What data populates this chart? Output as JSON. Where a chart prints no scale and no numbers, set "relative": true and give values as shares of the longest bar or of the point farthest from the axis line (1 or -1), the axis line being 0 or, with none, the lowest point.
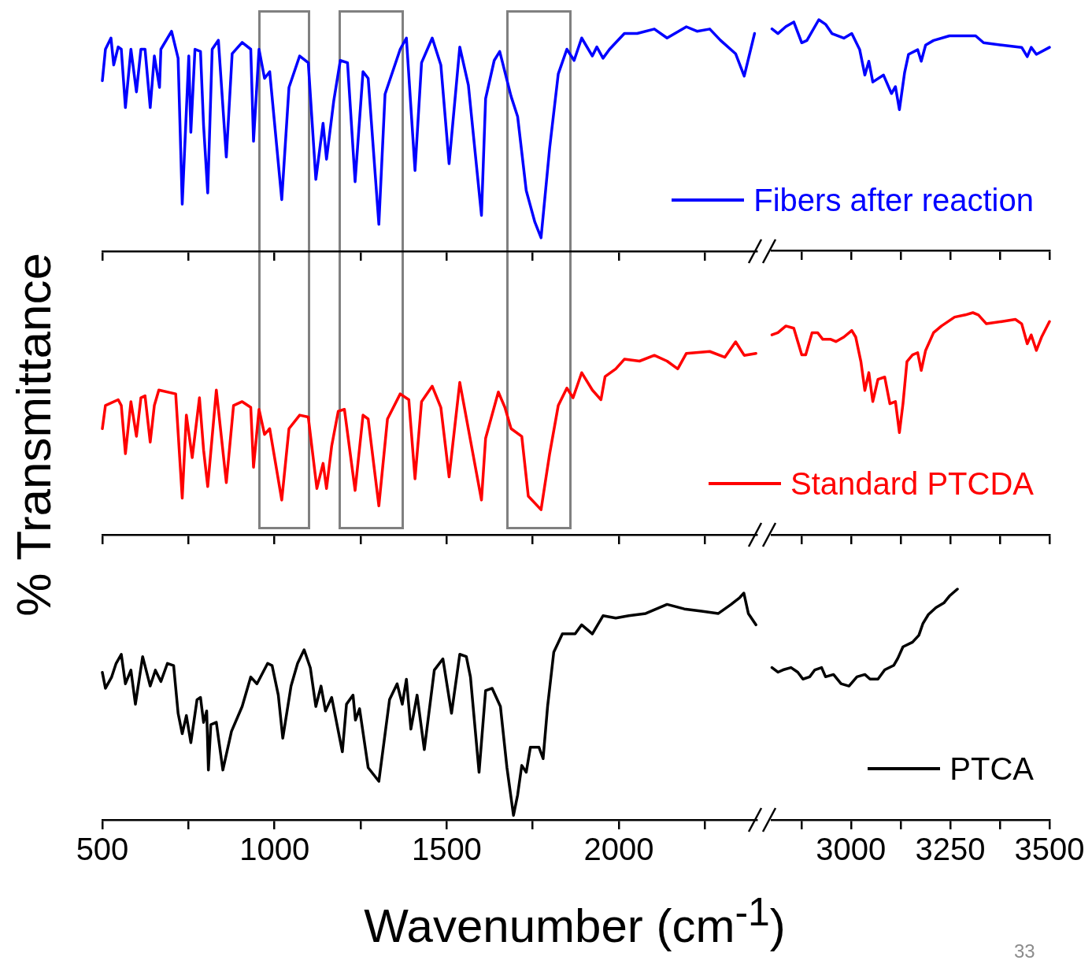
{
  "chart_data": [
    {
      "type": "line",
      "relative": true,
      "ylabel": "% Transmittance",
      "tick_labels": false,
      "legend": "bottom right",
      "xlim": [
        500,
        2400
      ],
      "xticks": [
        500,
        {
          "value": 750,
          "label": null
        },
        1000,
        {
          "value": 1250,
          "label": null
        },
        1500,
        {
          "value": 1750,
          "label": null
        },
        2000,
        {
          "value": 2250,
          "label": null
        }
      ],
      "x": [
        500,
        509,
        525,
        533,
        546,
        555,
        567,
        583,
        599,
        612,
        624,
        639,
        651,
        666,
        670,
        701,
        720,
        732,
        751,
        757,
        769,
        785,
        794,
        806,
        819,
        837,
        860,
        877,
        906,
        931,
        939,
        955,
        971,
        986,
        1021,
        1042,
        1073,
        1098,
        1120,
        1141,
        1151,
        1172,
        1191,
        1212,
        1234,
        1257,
        1272,
        1303,
        1321,
        1365,
        1383,
        1408,
        1427,
        1458,
        1483,
        1507,
        1538,
        1563,
        1601,
        1613,
        1638,
        1654,
        1687,
        1706,
        1731,
        1756,
        1774,
        1799,
        1824,
        1849,
        1870,
        1892,
        1923,
        1936,
        1954,
        1973,
        2016,
        2053,
        2103,
        2140,
        2196,
        2227,
        2264,
        2295,
        2339,
        2364,
        2394
      ],
      "series": [
        {
          "name": "Fibers after reaction",
          "color": "#0000ff",
          "values": [
            0.76,
            0.9,
            0.95,
            0.83,
            0.91,
            0.9,
            0.64,
            0.9,
            0.71,
            0.9,
            0.9,
            0.64,
            0.87,
            0.73,
            0.9,
            0.98,
            0.86,
            0.21,
            0.87,
            0.53,
            0.9,
            0.89,
            0.56,
            0.26,
            0.9,
            0.94,
            0.42,
            0.88,
            0.93,
            0.9,
            0.49,
            0.9,
            0.77,
            0.8,
            0.23,
            0.73,
            0.87,
            0.84,
            0.32,
            0.57,
            0.41,
            0.67,
            0.85,
            0.84,
            0.31,
            0.8,
            0.77,
            0.12,
            0.7,
            0.9,
            0.95,
            0.36,
            0.84,
            0.95,
            0.83,
            0.39,
            0.91,
            0.74,
            0.16,
            0.68,
            0.85,
            0.89,
            0.69,
            0.6,
            0.27,
            0.13,
            0.06,
            0.46,
            0.79,
            0.9,
            0.85,
            0.95,
            0.87,
            0.91,
            0.86,
            0.9,
            0.97,
            0.97,
            0.99,
            0.95,
            1.0,
            0.98,
            0.99,
            0.94,
            0.88,
            0.78,
            0.97
          ]
        }
      ]
    },
    {
      "type": "line",
      "relative": true,
      "tick_labels": false,
      "xlim": [
        2800,
        3500
      ],
      "xticks": [
        {
          "value": 2875,
          "label": null
        },
        3000,
        {
          "value": 3125,
          "label": null
        },
        3250,
        {
          "value": 3375,
          "label": null
        },
        3500
      ],
      "x": [
        2801,
        2816,
        2836,
        2856,
        2876,
        2889,
        2919,
        2936,
        2952,
        2982,
        3002,
        3022,
        3035,
        3045,
        3055,
        3082,
        3102,
        3112,
        3122,
        3135,
        3145,
        3168,
        3177,
        3188,
        3208,
        3248,
        3274,
        3314,
        3334,
        3380,
        3430,
        3444,
        3454,
        3467,
        3500
      ],
      "series": [
        {
          "color": "#0000ff",
          "values": [
            0.96,
            0.94,
            0.97,
            0.99,
            0.9,
            0.91,
            1.0,
            0.98,
            0.94,
            0.92,
            0.94,
            0.87,
            0.76,
            0.82,
            0.73,
            0.76,
            0.68,
            0.71,
            0.61,
            0.77,
            0.85,
            0.87,
            0.82,
            0.89,
            0.91,
            0.93,
            0.93,
            0.93,
            0.9,
            0.89,
            0.88,
            0.84,
            0.88,
            0.85,
            0.88
          ]
        }
      ]
    },
    {
      "type": "line",
      "relative": true,
      "tick_labels": false,
      "legend": "bottom right",
      "xlim": [
        500,
        2400
      ],
      "xticks": [
        500,
        {
          "value": 750,
          "label": null
        },
        1000,
        {
          "value": 1250,
          "label": null
        },
        1500,
        {
          "value": 1750,
          "label": null
        },
        2000,
        {
          "value": 2250,
          "label": null
        }
      ],
      "x": [
        500,
        509,
        546,
        555,
        567,
        583,
        599,
        612,
        624,
        639,
        651,
        664,
        713,
        732,
        744,
        761,
        782,
        794,
        806,
        831,
        860,
        881,
        906,
        931,
        939,
        955,
        971,
        986,
        1021,
        1042,
        1073,
        1098,
        1123,
        1141,
        1151,
        1166,
        1185,
        1203,
        1234,
        1257,
        1272,
        1303,
        1328,
        1365,
        1390,
        1408,
        1427,
        1458,
        1483,
        1507,
        1538,
        1569,
        1601,
        1613,
        1650,
        1669,
        1687,
        1718,
        1737,
        1774,
        1799,
        1824,
        1849,
        1867,
        1892,
        1923,
        1948,
        1960,
        1991,
        2016,
        2060,
        2103,
        2140,
        2171,
        2196,
        2264,
        2308,
        2339,
        2364,
        2398
      ],
      "series": [
        {
          "name": "Standard PTCDA",
          "color": "#ff0000",
          "values": [
            0.55,
            0.67,
            0.7,
            0.67,
            0.42,
            0.69,
            0.51,
            0.71,
            0.72,
            0.48,
            0.67,
            0.75,
            0.73,
            0.19,
            0.62,
            0.4,
            0.71,
            0.44,
            0.25,
            0.75,
            0.27,
            0.67,
            0.69,
            0.66,
            0.35,
            0.65,
            0.52,
            0.55,
            0.18,
            0.55,
            0.62,
            0.61,
            0.24,
            0.37,
            0.24,
            0.46,
            0.64,
            0.65,
            0.23,
            0.62,
            0.6,
            0.15,
            0.6,
            0.73,
            0.7,
            0.29,
            0.69,
            0.77,
            0.66,
            0.3,
            0.79,
            0.49,
            0.18,
            0.5,
            0.74,
            0.66,
            0.55,
            0.51,
            0.2,
            0.13,
            0.42,
            0.67,
            0.76,
            0.71,
            0.84,
            0.75,
            0.7,
            0.82,
            0.86,
            0.91,
            0.9,
            0.93,
            0.9,
            0.86,
            0.94,
            0.95,
            0.92,
            1.0,
            0.93,
            0.94
          ]
        }
      ]
    },
    {
      "type": "line",
      "relative": true,
      "tick_labels": false,
      "xlim": [
        2800,
        3500
      ],
      "xticks": [
        {
          "value": 2875,
          "label": null
        },
        3000,
        {
          "value": 3125,
          "label": null
        },
        3250,
        {
          "value": 3375,
          "label": null
        },
        3500
      ],
      "x": [
        2801,
        2816,
        2836,
        2856,
        2876,
        2886,
        2902,
        2916,
        2929,
        2949,
        2962,
        2982,
        3002,
        3012,
        3025,
        3035,
        3045,
        3055,
        3068,
        3085,
        3098,
        3112,
        3122,
        3131,
        3141,
        3155,
        3168,
        3177,
        3188,
        3208,
        3228,
        3261,
        3288,
        3307,
        3321,
        3341,
        3380,
        3414,
        3430,
        3444,
        3454,
        3467,
        3480,
        3500
      ],
      "series": [
        {
          "color": "#ff0000",
          "values": [
            0.9,
            0.91,
            0.94,
            0.93,
            0.81,
            0.81,
            0.91,
            0.91,
            0.88,
            0.88,
            0.87,
            0.89,
            0.92,
            0.89,
            0.78,
            0.65,
            0.73,
            0.6,
            0.7,
            0.71,
            0.59,
            0.6,
            0.46,
            0.59,
            0.78,
            0.81,
            0.82,
            0.74,
            0.83,
            0.91,
            0.94,
            0.98,
            0.99,
            1.0,
            0.99,
            0.95,
            0.96,
            0.97,
            0.95,
            0.86,
            0.9,
            0.83,
            0.89,
            0.96
          ]
        }
      ]
    },
    {
      "type": "line",
      "relative": true,
      "tick_labels": "x",
      "legend": "bottom right",
      "xlabel": "Wavenumber (cm$^{-1}$)",
      "xlim": [
        500,
        2400
      ],
      "xticks": [
        500,
        {
          "value": 750,
          "label": null
        },
        1000,
        {
          "value": 1250,
          "label": null
        },
        1500,
        {
          "value": 1750,
          "label": null
        },
        2000,
        {
          "value": 2250,
          "label": null
        }
      ],
      "x": [
        500,
        509,
        527,
        540,
        555,
        567,
        583,
        596,
        617,
        639,
        654,
        670,
        689,
        707,
        720,
        732,
        744,
        757,
        775,
        785,
        794,
        803,
        808,
        815,
        831,
        850,
        875,
        906,
        931,
        949,
        980,
        993,
        1011,
        1024,
        1048,
        1067,
        1086,
        1104,
        1120,
        1135,
        1148,
        1166,
        1197,
        1209,
        1228,
        1235,
        1247,
        1272,
        1303,
        1334,
        1356,
        1371,
        1383,
        1396,
        1414,
        1435,
        1464,
        1489,
        1514,
        1538,
        1557,
        1569,
        1594,
        1613,
        1632,
        1656,
        1675,
        1694,
        1706,
        1718,
        1731,
        1743,
        1768,
        1780,
        1793,
        1811,
        1836,
        1873,
        1892,
        1923,
        1954,
        1991,
        2029,
        2078,
        2140,
        2190,
        2240,
        2289,
        2326,
        2351,
        2363,
        2376,
        2398
      ],
      "series": [
        {
          "name": "PTCA",
          "color": "#000000",
          "values": [
            0.65,
            0.58,
            0.63,
            0.69,
            0.73,
            0.6,
            0.66,
            0.51,
            0.72,
            0.59,
            0.66,
            0.61,
            0.69,
            0.68,
            0.47,
            0.38,
            0.46,
            0.34,
            0.53,
            0.54,
            0.43,
            0.48,
            0.22,
            0.42,
            0.43,
            0.22,
            0.39,
            0.5,
            0.63,
            0.6,
            0.69,
            0.68,
            0.55,
            0.36,
            0.59,
            0.69,
            0.75,
            0.67,
            0.5,
            0.59,
            0.48,
            0.54,
            0.3,
            0.51,
            0.55,
            0.44,
            0.49,
            0.23,
            0.17,
            0.53,
            0.6,
            0.51,
            0.62,
            0.4,
            0.55,
            0.31,
            0.66,
            0.71,
            0.47,
            0.73,
            0.72,
            0.63,
            0.21,
            0.57,
            0.58,
            0.5,
            0.23,
            0.02,
            0.11,
            0.24,
            0.21,
            0.32,
            0.32,
            0.27,
            0.5,
            0.74,
            0.82,
            0.82,
            0.86,
            0.82,
            0.9,
            0.89,
            0.9,
            0.91,
            0.95,
            0.93,
            0.92,
            0.91,
            0.95,
            0.98,
            1.0,
            0.91,
            0.86
          ]
        }
      ]
    },
    {
      "type": "line",
      "relative": true,
      "tick_labels": "x",
      "xlim": [
        2800,
        3500
      ],
      "xticks": [
        {
          "value": 2875,
          "label": null
        },
        3000,
        {
          "value": 3125,
          "label": null
        },
        3250,
        {
          "value": 3375,
          "label": null
        },
        3500
      ],
      "annotations": [
        "33"
      ],
      "x": [
        2801,
        2816,
        2829,
        2849,
        2866,
        2879,
        2896,
        2909,
        2926,
        2936,
        2956,
        2975,
        2995,
        3015,
        3035,
        3048,
        3068,
        3085,
        3108,
        3118,
        3131,
        3155,
        3171,
        3181,
        3195,
        3214,
        3234,
        3248,
        3268
      ],
      "series": [
        {
          "color": "#000000",
          "values": [
            0.66,
            0.64,
            0.65,
            0.66,
            0.64,
            0.61,
            0.62,
            0.65,
            0.66,
            0.62,
            0.63,
            0.59,
            0.58,
            0.62,
            0.63,
            0.61,
            0.61,
            0.65,
            0.67,
            0.7,
            0.75,
            0.77,
            0.8,
            0.85,
            0.89,
            0.92,
            0.94,
            0.97,
            1.0
          ]
        }
      ]
    }
  ]
}
